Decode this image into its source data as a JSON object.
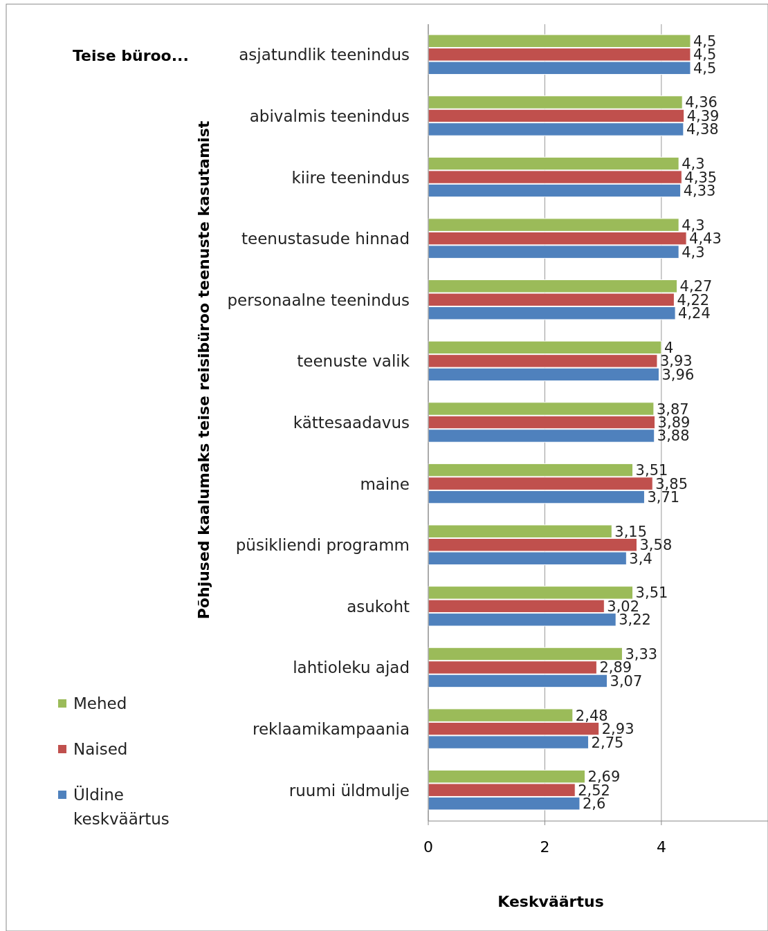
{
  "chart_data": {
    "type": "bar",
    "orientation": "horizontal",
    "title": "Teise büroo...",
    "xlabel": "Keskväärtus",
    "ylabel": "Põhjused kaalumaks teise reisibüroo teenuste kasutamist",
    "categories": [
      "asjatundlik teenindus",
      "abivalmis teenindus",
      "kiire teenindus",
      "teenustasude hinnad",
      "personaalne teenindus",
      "teenuste valik",
      "kättesaadavus",
      "maine",
      "püsikliendi programm",
      "asukoht",
      "lahtioleku ajad",
      "reklaamikampaania",
      "ruumi üldmulje"
    ],
    "series": [
      {
        "name": "Mehed",
        "color": "#9bbb59",
        "values": [
          4.5,
          4.36,
          4.3,
          4.3,
          4.27,
          4,
          3.87,
          3.51,
          3.15,
          3.51,
          3.33,
          2.48,
          2.69
        ],
        "value_labels": [
          "4,5",
          "4,36",
          "4,3",
          "4,3",
          "4,27",
          "4",
          "3,87",
          "3,51",
          "3,15",
          "3,51",
          "3,33",
          "2,48",
          "2,69"
        ]
      },
      {
        "name": "Naised",
        "color": "#c0504d",
        "values": [
          4.5,
          4.39,
          4.35,
          4.43,
          4.22,
          3.93,
          3.89,
          3.85,
          3.58,
          3.02,
          2.89,
          2.93,
          2.52
        ],
        "value_labels": [
          "4,5",
          "4,39",
          "4,35",
          "4,43",
          "4,22",
          "3,93",
          "3,89",
          "3,85",
          "3,58",
          "3,02",
          "2,89",
          "2,93",
          "2,52"
        ]
      },
      {
        "name": "Üldine keskväärtus",
        "color": "#4f81bd",
        "values": [
          4.5,
          4.38,
          4.33,
          4.3,
          4.24,
          3.96,
          3.88,
          3.71,
          3.4,
          3.22,
          3.07,
          2.75,
          2.6
        ],
        "value_labels": [
          "4,5",
          "4,38",
          "4,33",
          "4,3",
          "4,24",
          "3,96",
          "3,88",
          "3,71",
          "3,4",
          "3,22",
          "3,07",
          "2,75",
          "2,6"
        ]
      }
    ],
    "xlim": [
      0,
      5.83
    ],
    "xticks": [
      0,
      2,
      4
    ],
    "grid": "x",
    "legend": "bottom left"
  }
}
